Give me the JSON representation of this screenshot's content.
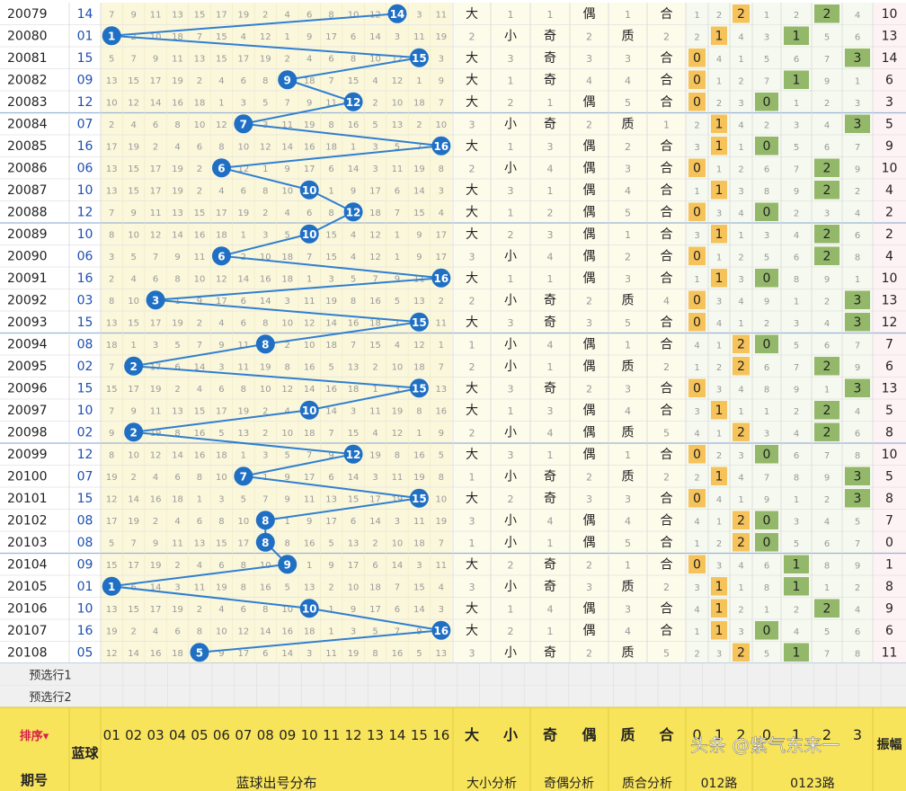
{
  "chart_data": {
    "type": "table",
    "title": "蓝球出号分布",
    "balls": [
      "01",
      "02",
      "03",
      "04",
      "05",
      "06",
      "07",
      "08",
      "09",
      "10",
      "11",
      "12",
      "13",
      "14",
      "15",
      "16"
    ],
    "rows": [
      {
        "period": "20079",
        "ball": 14,
        "big_small": "大",
        "odd_even": "偶",
        "prime_comp": "合",
        "road012": 2,
        "road0123": 2,
        "swing": 10
      },
      {
        "period": "20080",
        "ball": 1,
        "big_small": "小",
        "odd_even": "奇",
        "prime_comp": "质",
        "road012": 1,
        "road0123": 1,
        "swing": 13
      },
      {
        "period": "20081",
        "ball": 15,
        "big_small": "大",
        "odd_even": "奇",
        "prime_comp": "合",
        "road012": 0,
        "road0123": 3,
        "swing": 14
      },
      {
        "period": "20082",
        "ball": 9,
        "big_small": "大",
        "odd_even": "奇",
        "prime_comp": "合",
        "road012": 0,
        "road0123": 1,
        "swing": 6
      },
      {
        "period": "20083",
        "ball": 12,
        "big_small": "大",
        "odd_even": "偶",
        "prime_comp": "合",
        "road012": 0,
        "road0123": 0,
        "swing": 3
      },
      {
        "period": "20084",
        "ball": 7,
        "big_small": "小",
        "odd_even": "奇",
        "prime_comp": "质",
        "road012": 1,
        "road0123": 3,
        "swing": 5
      },
      {
        "period": "20085",
        "ball": 16,
        "big_small": "大",
        "odd_even": "偶",
        "prime_comp": "合",
        "road012": 1,
        "road0123": 0,
        "swing": 9
      },
      {
        "period": "20086",
        "ball": 6,
        "big_small": "小",
        "odd_even": "偶",
        "prime_comp": "合",
        "road012": 0,
        "road0123": 2,
        "swing": 10
      },
      {
        "period": "20087",
        "ball": 10,
        "big_small": "大",
        "odd_even": "偶",
        "prime_comp": "合",
        "road012": 1,
        "road0123": 2,
        "swing": 4
      },
      {
        "period": "20088",
        "ball": 12,
        "big_small": "大",
        "odd_even": "偶",
        "prime_comp": "合",
        "road012": 0,
        "road0123": 0,
        "swing": 2
      },
      {
        "period": "20089",
        "ball": 10,
        "big_small": "大",
        "odd_even": "偶",
        "prime_comp": "合",
        "road012": 1,
        "road0123": 2,
        "swing": 2
      },
      {
        "period": "20090",
        "ball": 6,
        "big_small": "小",
        "odd_even": "偶",
        "prime_comp": "合",
        "road012": 0,
        "road0123": 2,
        "swing": 4
      },
      {
        "period": "20091",
        "ball": 16,
        "big_small": "大",
        "odd_even": "偶",
        "prime_comp": "合",
        "road012": 1,
        "road0123": 0,
        "swing": 10
      },
      {
        "period": "20092",
        "ball": 3,
        "big_small": "小",
        "odd_even": "奇",
        "prime_comp": "质",
        "road012": 0,
        "road0123": 3,
        "swing": 13
      },
      {
        "period": "20093",
        "ball": 15,
        "big_small": "大",
        "odd_even": "奇",
        "prime_comp": "合",
        "road012": 0,
        "road0123": 3,
        "swing": 12
      },
      {
        "period": "20094",
        "ball": 8,
        "big_small": "小",
        "odd_even": "偶",
        "prime_comp": "合",
        "road012": 2,
        "road0123": 0,
        "swing": 7
      },
      {
        "period": "20095",
        "ball": 2,
        "big_small": "小",
        "odd_even": "偶",
        "prime_comp": "质",
        "road012": 2,
        "road0123": 2,
        "swing": 6
      },
      {
        "period": "20096",
        "ball": 15,
        "big_small": "大",
        "odd_even": "奇",
        "prime_comp": "合",
        "road012": 0,
        "road0123": 3,
        "swing": 13
      },
      {
        "period": "20097",
        "ball": 10,
        "big_small": "大",
        "odd_even": "偶",
        "prime_comp": "合",
        "road012": 1,
        "road0123": 2,
        "swing": 5
      },
      {
        "period": "20098",
        "ball": 2,
        "big_small": "小",
        "odd_even": "偶",
        "prime_comp": "质",
        "road012": 2,
        "road0123": 2,
        "swing": 8
      },
      {
        "period": "20099",
        "ball": 12,
        "big_small": "大",
        "odd_even": "偶",
        "prime_comp": "合",
        "road012": 0,
        "road0123": 0,
        "swing": 10
      },
      {
        "period": "20100",
        "ball": 7,
        "big_small": "小",
        "odd_even": "奇",
        "prime_comp": "质",
        "road012": 1,
        "road0123": 3,
        "swing": 5
      },
      {
        "period": "20101",
        "ball": 15,
        "big_small": "大",
        "odd_even": "奇",
        "prime_comp": "合",
        "road012": 0,
        "road0123": 3,
        "swing": 8
      },
      {
        "period": "20102",
        "ball": 8,
        "big_small": "小",
        "odd_even": "偶",
        "prime_comp": "合",
        "road012": 2,
        "road0123": 0,
        "swing": 7
      },
      {
        "period": "20103",
        "ball": 8,
        "big_small": "小",
        "odd_even": "偶",
        "prime_comp": "合",
        "road012": 2,
        "road0123": 0,
        "swing": 0
      },
      {
        "period": "20104",
        "ball": 9,
        "big_small": "大",
        "odd_even": "奇",
        "prime_comp": "合",
        "road012": 0,
        "road0123": 1,
        "swing": 1
      },
      {
        "period": "20105",
        "ball": 1,
        "big_small": "小",
        "odd_even": "奇",
        "prime_comp": "质",
        "road012": 1,
        "road0123": 1,
        "swing": 8
      },
      {
        "period": "20106",
        "ball": 10,
        "big_small": "大",
        "odd_even": "偶",
        "prime_comp": "合",
        "road012": 1,
        "road0123": 2,
        "swing": 9
      },
      {
        "period": "20107",
        "ball": 16,
        "big_small": "大",
        "odd_even": "偶",
        "prime_comp": "合",
        "road012": 1,
        "road0123": 0,
        "swing": 6
      },
      {
        "period": "20108",
        "ball": 5,
        "big_small": "小",
        "odd_even": "奇",
        "prime_comp": "质",
        "road012": 2,
        "road0123": 1,
        "swing": 11
      }
    ],
    "preselect_rows": [
      "预选行1",
      "预选行2"
    ],
    "footer": {
      "sort_label": "排序",
      "period_label": "期号",
      "blue_label": "蓝球",
      "dist_label": "蓝球出号分布",
      "big_small": [
        "大",
        "小"
      ],
      "big_small_label": "大小分析",
      "odd_even": [
        "奇",
        "偶"
      ],
      "odd_even_label": "奇偶分析",
      "prime_comp": [
        "质",
        "合"
      ],
      "prime_comp_label": "质合分析",
      "road012": [
        "0",
        "1",
        "2"
      ],
      "road012_label": "012路",
      "road0123": [
        "0",
        "1",
        "2",
        "3"
      ],
      "road0123_label": "0123路",
      "swing_label": "振幅"
    },
    "watermark": "头条 @紫气东来一",
    "colors": {
      "ball": "#1f6fc4",
      "line": "#2f7fd0",
      "orange": "#f6c35a",
      "green": "#94b86a",
      "bg_yellow": "#fbf7db",
      "header": "#f8e45a"
    }
  }
}
